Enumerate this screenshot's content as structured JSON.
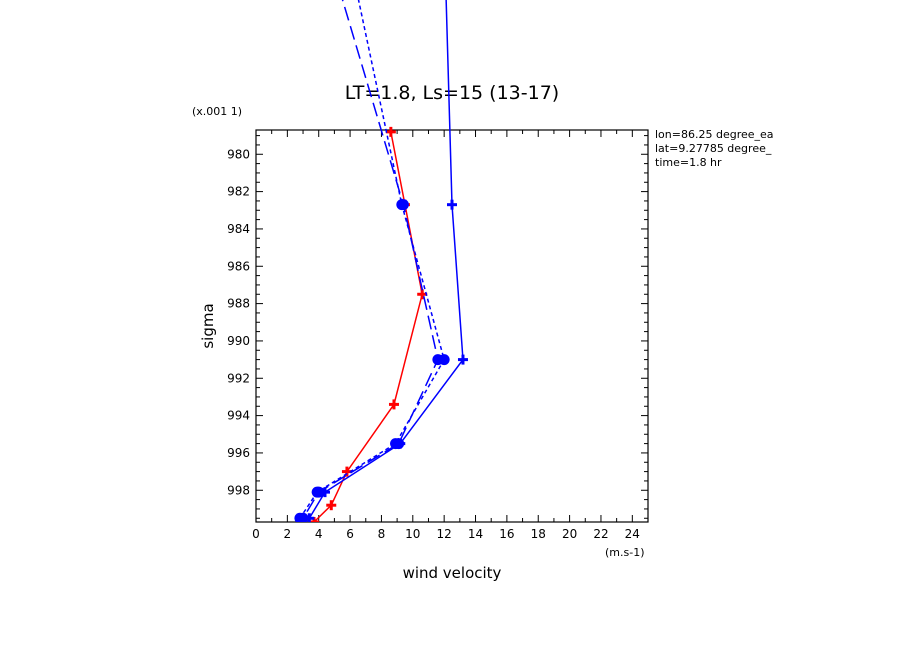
{
  "chart_data": {
    "type": "line",
    "title": "LT=1.8, Ls=15 (13-17)",
    "xlabel": "wind velocity",
    "ylabel": "sigma",
    "x_units": "(m.s-1)",
    "y_units": "(x.001 1)",
    "xlim": [
      0,
      25
    ],
    "ylim": [
      999.7,
      978.7
    ],
    "x_ticks": [
      "0",
      "2",
      "4",
      "6",
      "8",
      "10",
      "12",
      "14",
      "16",
      "18",
      "20",
      "22",
      "24"
    ],
    "y_ticks": [
      "980",
      "982",
      "984",
      "986",
      "988",
      "990",
      "992",
      "994",
      "996",
      "998"
    ],
    "info": [
      "lon=86.25 degree_ea",
      "lat=9.27785 degree_",
      "time=1.8 hr"
    ],
    "grid": false,
    "series": [
      {
        "color": "#ff0000",
        "style": "solid",
        "marker": "cross",
        "points": [
          [
            8.6,
            978.8
          ],
          [
            9.5,
            982.7
          ],
          [
            10.6,
            987.5
          ],
          [
            8.8,
            993.4
          ],
          [
            5.8,
            997.0
          ],
          [
            4.8,
            998.8
          ],
          [
            3.7,
            999.7
          ]
        ]
      },
      {
        "color": "#0000ff",
        "style": "solid",
        "marker": "cross",
        "points": [
          [
            12.0,
            968.0
          ],
          [
            12.5,
            982.7
          ],
          [
            13.2,
            991.0
          ],
          [
            9.2,
            995.5
          ],
          [
            4.4,
            998.1
          ],
          [
            3.4,
            999.5
          ]
        ]
      },
      {
        "color": "#0000ff",
        "style": "dashed",
        "marker": "dot",
        "points": [
          [
            5.6,
            968.0
          ],
          [
            9.3,
            982.7
          ],
          [
            12.0,
            991.0
          ],
          [
            8.9,
            995.5
          ],
          [
            3.9,
            998.1
          ],
          [
            2.8,
            999.5
          ]
        ]
      },
      {
        "color": "#0000ff",
        "style": "longdash",
        "marker": "dot",
        "points": [
          [
            4.2,
            968.0
          ],
          [
            9.4,
            982.7
          ],
          [
            11.6,
            991.0
          ],
          [
            9.1,
            995.5
          ],
          [
            4.0,
            998.1
          ],
          [
            3.0,
            999.5
          ]
        ]
      }
    ]
  }
}
